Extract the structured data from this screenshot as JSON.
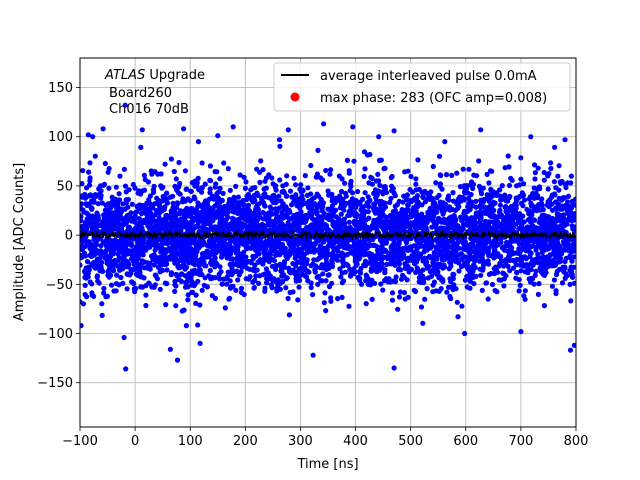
{
  "chart_data": {
    "type": "scatter",
    "xlabel": "Time [ns]",
    "ylabel": "Amplitude [ADC Counts]",
    "xlim": [
      -100,
      800
    ],
    "ylim": [
      -195,
      180
    ],
    "x_ticks": [
      -100,
      0,
      100,
      200,
      300,
      400,
      500,
      600,
      700,
      800
    ],
    "y_ticks": [
      -150,
      -100,
      -50,
      0,
      50,
      100,
      150
    ],
    "grid": true,
    "legend_position": "top-right",
    "annotation": {
      "line1_italic": "ATLAS",
      "line1_rest": " Upgrade",
      "line2": "Board260",
      "line3": "Ch016 70dB"
    },
    "legend": [
      {
        "label": "average interleaved pulse 0.0mA",
        "marker": "line",
        "color": "#000000"
      },
      {
        "label": "max phase: 283 (OFC amp=0.008)",
        "marker": "dot",
        "color": "#ff0000"
      }
    ],
    "series": [
      {
        "name": "average interleaved pulse 0.0mA",
        "kind": "line",
        "color": "#000000",
        "description_values": {
          "x_start": -100,
          "x_end": 800,
          "mean": 0,
          "spread": 3
        }
      },
      {
        "kind": "scatter",
        "color": "#0000ff",
        "noise_sigma": 27,
        "n_points": 4800,
        "outliers": [
          {
            "x": -85,
            "y": 102
          },
          {
            "x": -77,
            "y": 100
          },
          {
            "x": -58,
            "y": 108
          },
          {
            "x": -18,
            "y": 132
          },
          {
            "x": 13,
            "y": 107
          },
          {
            "x": 88,
            "y": 108
          },
          {
            "x": 115,
            "y": 95
          },
          {
            "x": 150,
            "y": 101
          },
          {
            "x": 178,
            "y": 110
          },
          {
            "x": 262,
            "y": 97
          },
          {
            "x": 278,
            "y": 107
          },
          {
            "x": 342,
            "y": 113
          },
          {
            "x": 395,
            "y": 110
          },
          {
            "x": 442,
            "y": 100
          },
          {
            "x": 470,
            "y": 106
          },
          {
            "x": 562,
            "y": 95
          },
          {
            "x": 627,
            "y": 107
          },
          {
            "x": 718,
            "y": 100
          },
          {
            "x": 780,
            "y": 97
          },
          {
            "x": -98,
            "y": -92
          },
          {
            "x": -20,
            "y": -104
          },
          {
            "x": -17,
            "y": -136
          },
          {
            "x": 64,
            "y": -116
          },
          {
            "x": 77,
            "y": -127
          },
          {
            "x": 93,
            "y": -92
          },
          {
            "x": 118,
            "y": -110
          },
          {
            "x": 323,
            "y": -122
          },
          {
            "x": 470,
            "y": -135
          },
          {
            "x": 598,
            "y": -100
          },
          {
            "x": 700,
            "y": -98
          },
          {
            "x": 790,
            "y": -117
          },
          {
            "x": 797,
            "y": -112
          }
        ]
      }
    ]
  }
}
